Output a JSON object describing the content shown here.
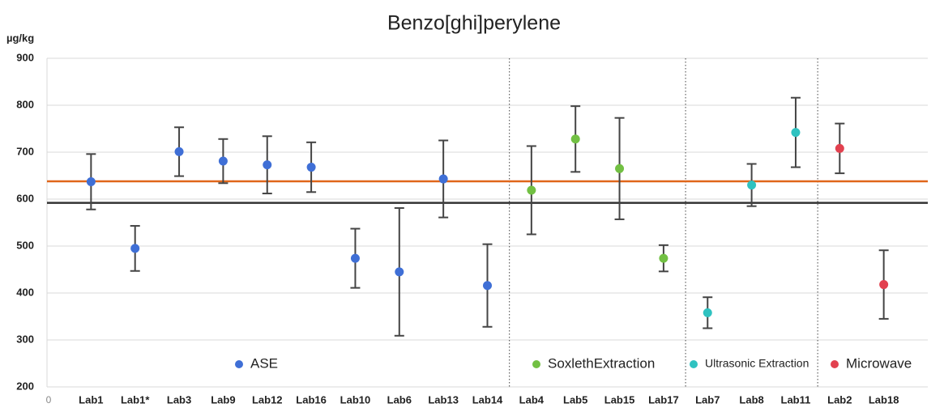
{
  "chart_data": {
    "type": "errorbar",
    "title": "Benzo[ghi]perylene",
    "y_unit_label": "µg/kg",
    "x_origin_label": "0",
    "categories": [
      "Lab1",
      "Lab1*",
      "Lab3",
      "Lab9",
      "Lab12",
      "Lab16",
      "Lab10",
      "Lab6",
      "Lab13",
      "Lab14",
      "Lab4",
      "Lab5",
      "Lab15",
      "Lab17",
      "Lab7",
      "Lab8",
      "Lab11",
      "Lab2",
      "Lab18"
    ],
    "series": [
      {
        "name": "ASE",
        "color": "#3f6fd6",
        "values": [
          637,
          495,
          701,
          681,
          673,
          668,
          474,
          445,
          643,
          416,
          null,
          null,
          null,
          null,
          null,
          null,
          null,
          null,
          null
        ],
        "errors": [
          59,
          48,
          52,
          47,
          61,
          53,
          63,
          136,
          82,
          88,
          null,
          null,
          null,
          null,
          null,
          null,
          null,
          null,
          null
        ]
      },
      {
        "name": "SoxlethExtraction",
        "color": "#72c043",
        "values": [
          null,
          null,
          null,
          null,
          null,
          null,
          null,
          null,
          null,
          null,
          619,
          728,
          665,
          474,
          null,
          null,
          null,
          null,
          null
        ],
        "errors": [
          null,
          null,
          null,
          null,
          null,
          null,
          null,
          null,
          null,
          null,
          94,
          70,
          108,
          28,
          null,
          null,
          null,
          null,
          null
        ]
      },
      {
        "name": "Ultrasonic Extraction",
        "color": "#2fc2c0",
        "values": [
          null,
          null,
          null,
          null,
          null,
          null,
          null,
          null,
          null,
          null,
          null,
          null,
          null,
          null,
          358,
          630,
          742,
          null,
          null
        ],
        "errors": [
          null,
          null,
          null,
          null,
          null,
          null,
          null,
          null,
          null,
          null,
          null,
          null,
          null,
          null,
          33,
          45,
          74,
          null,
          null
        ]
      },
      {
        "name": "Microwave",
        "color": "#e2414f",
        "values": [
          null,
          null,
          null,
          null,
          null,
          null,
          null,
          null,
          null,
          null,
          null,
          null,
          null,
          null,
          null,
          null,
          null,
          708,
          418
        ],
        "errors": [
          null,
          null,
          null,
          null,
          null,
          null,
          null,
          null,
          null,
          null,
          null,
          null,
          null,
          null,
          null,
          null,
          null,
          53,
          73
        ]
      }
    ],
    "reference_lines": [
      {
        "value": 638,
        "color": "#e0661a"
      },
      {
        "value": 592,
        "color": "#333333"
      }
    ],
    "ylim": [
      200,
      900
    ],
    "yticks": [
      200,
      300,
      400,
      500,
      600,
      700,
      800,
      900
    ],
    "grid": true
  }
}
